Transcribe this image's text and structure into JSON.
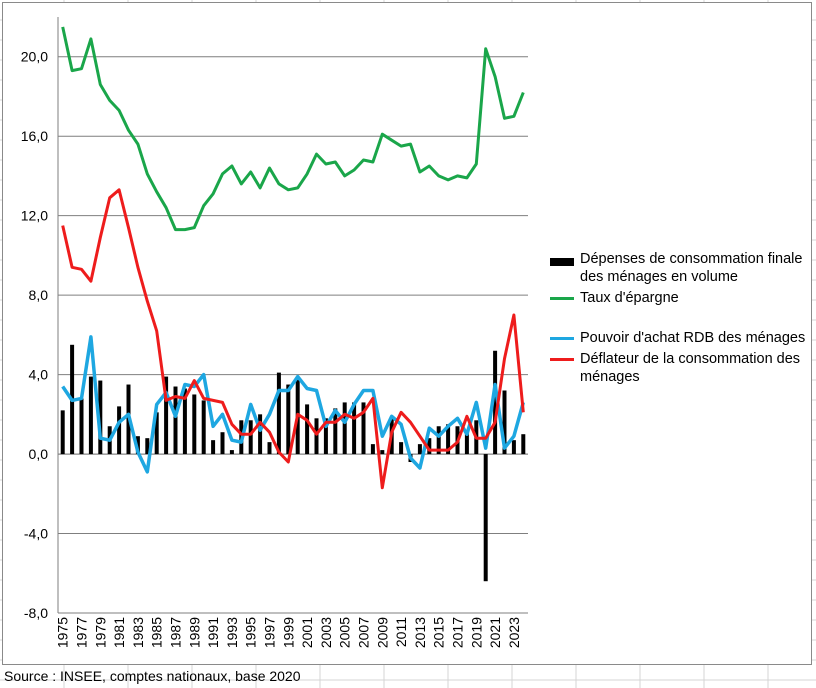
{
  "source": "Source : INSEE, comptes nationaux, base 2020",
  "legend": [
    {
      "label": "Dépenses de consommation finale des ménages en volume",
      "color": "#000000",
      "kind": "bar"
    },
    {
      "label": "Taux d'épargne",
      "color": "#1aa64a",
      "kind": "line"
    },
    {
      "label": "Pouvoir d'achat RDB des ménages",
      "color": "#1ea7e1",
      "kind": "line"
    },
    {
      "label": "Déflateur de la consommation des ménages",
      "color": "#ee1c1c",
      "kind": "line"
    }
  ],
  "chart_data": {
    "type": "bar",
    "title": "",
    "xlabel": "",
    "ylabel": "",
    "ylim": [
      -8,
      22
    ],
    "yticks": [
      "-8,0",
      "-4,0",
      "0,0",
      "4,0",
      "8,0",
      "12,0",
      "16,0",
      "20,0"
    ],
    "ytick_values": [
      -8,
      -4,
      0,
      4,
      8,
      12,
      16,
      20
    ],
    "grid": true,
    "legend_position": "right",
    "categories": [
      "1975",
      "1976",
      "1977",
      "1978",
      "1979",
      "1980",
      "1981",
      "1982",
      "1983",
      "1984",
      "1985",
      "1986",
      "1987",
      "1988",
      "1989",
      "1990",
      "1991",
      "1992",
      "1993",
      "1994",
      "1995",
      "1996",
      "1997",
      "1998",
      "1999",
      "2000",
      "2001",
      "2002",
      "2003",
      "2004",
      "2005",
      "2006",
      "2007",
      "2008",
      "2009",
      "2010",
      "2011",
      "2012",
      "2013",
      "2014",
      "2015",
      "2016",
      "2017",
      "2018",
      "2019",
      "2020",
      "2021",
      "2022",
      "2023",
      "2024"
    ],
    "xtick_labels": [
      "1975",
      "1977",
      "1979",
      "1981",
      "1983",
      "1985",
      "1987",
      "1989",
      "1991",
      "1993",
      "1995",
      "1997",
      "1999",
      "2001",
      "2003",
      "2005",
      "2007",
      "2009",
      "2011",
      "2013",
      "2015",
      "2017",
      "2019",
      "2021",
      "2023"
    ],
    "series": [
      {
        "name": "Dépenses de consommation finale des ménages en volume",
        "type": "bar",
        "color": "#000000",
        "values": [
          2.2,
          5.5,
          2.8,
          3.9,
          3.7,
          1.4,
          2.4,
          3.5,
          0.9,
          0.8,
          2.1,
          3.9,
          3.4,
          3.3,
          3.0,
          2.7,
          0.7,
          1.1,
          0.2,
          1.7,
          1.7,
          2.0,
          0.6,
          4.1,
          3.5,
          3.8,
          2.5,
          1.8,
          1.8,
          2.3,
          2.6,
          2.6,
          2.6,
          0.5,
          0.2,
          1.8,
          0.6,
          -0.4,
          0.5,
          0.8,
          1.4,
          1.5,
          1.4,
          1.1,
          1.7,
          -6.4,
          5.2,
          3.2,
          0.7,
          1.0
        ]
      },
      {
        "name": "Taux d'épargne",
        "type": "line",
        "color": "#1aa64a",
        "values": [
          21.5,
          19.3,
          19.4,
          20.9,
          18.6,
          17.8,
          17.3,
          16.3,
          15.6,
          14.1,
          13.2,
          12.4,
          11.3,
          11.3,
          11.4,
          12.5,
          13.1,
          14.1,
          14.5,
          13.6,
          14.2,
          13.4,
          14.4,
          13.6,
          13.3,
          13.4,
          14.1,
          15.1,
          14.6,
          14.7,
          14.0,
          14.3,
          14.8,
          14.7,
          16.1,
          15.8,
          15.5,
          15.6,
          14.2,
          14.5,
          14.0,
          13.8,
          14.0,
          13.9,
          14.6,
          20.4,
          19.0,
          16.9,
          17.0,
          18.2
        ]
      },
      {
        "name": "Pouvoir d'achat RDB des ménages",
        "type": "line",
        "color": "#1ea7e1",
        "values": [
          3.4,
          2.7,
          2.8,
          5.9,
          0.8,
          0.7,
          1.6,
          2.0,
          0.1,
          -0.9,
          2.5,
          3.1,
          1.9,
          3.5,
          3.4,
          4.0,
          1.4,
          2.0,
          0.7,
          0.6,
          2.5,
          1.2,
          2.0,
          3.2,
          3.2,
          3.9,
          3.3,
          3.2,
          1.4,
          2.2,
          1.6,
          2.5,
          3.2,
          3.2,
          0.9,
          1.9,
          1.5,
          -0.2,
          -0.7,
          1.3,
          0.9,
          1.4,
          1.8,
          1.0,
          2.6,
          0.3,
          3.5,
          0.3,
          0.9,
          2.6
        ]
      },
      {
        "name": "Déflateur de la consommation des ménages",
        "type": "line",
        "color": "#ee1c1c",
        "values": [
          11.5,
          9.4,
          9.3,
          8.7,
          10.9,
          12.9,
          13.3,
          11.4,
          9.4,
          7.7,
          6.2,
          2.7,
          2.9,
          2.8,
          3.7,
          2.8,
          2.7,
          2.6,
          1.5,
          1.0,
          1.0,
          1.6,
          1.1,
          0.1,
          -0.4,
          2.0,
          1.7,
          1.0,
          1.6,
          1.6,
          2.0,
          1.8,
          2.1,
          2.8,
          -1.7,
          1.1,
          2.1,
          1.6,
          0.9,
          0.2,
          0.2,
          0.2,
          0.6,
          1.9,
          0.8,
          0.8,
          1.6,
          4.8,
          7.0,
          2.1
        ]
      }
    ]
  }
}
